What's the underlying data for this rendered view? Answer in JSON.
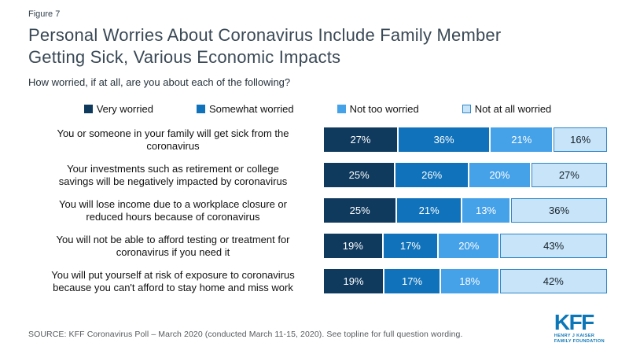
{
  "figure_label": "Figure 7",
  "title_lines": [
    "Personal Worries About Coronavirus Include Family Member",
    "Getting Sick, Various Economic Impacts"
  ],
  "subtitle": "How worried, if at all, are you about each of the following?",
  "colors": {
    "very_worried": "#0f3a5e",
    "somewhat_worried": "#1072ba",
    "not_too_worried": "#45a1e8",
    "not_at_all_worried": "#c8e4f8",
    "not_at_all_border": "#2e86c8",
    "kff_blue": "#0c77b8"
  },
  "chart_data": {
    "type": "bar",
    "orientation": "horizontal",
    "stacked": true,
    "value_unit": "%",
    "legend_position": "top",
    "legend": [
      "Very worried",
      "Somewhat worried",
      "Not too worried",
      "Not at all worried"
    ],
    "categories": [
      "You or someone in your family will get sick from the coronavirus",
      "Your investments such as retirement or college savings will be negatively impacted by coronavirus",
      "You will lose income due to a workplace closure or reduced hours because of coronavirus",
      "You will not be able to afford testing or treatment for coronavirus if you need it",
      "You will put yourself at risk of exposure to coronavirus because you can't afford to stay home and miss work"
    ],
    "series": [
      {
        "name": "Very worried",
        "values": [
          27,
          25,
          25,
          19,
          19
        ]
      },
      {
        "name": "Somewhat worried",
        "values": [
          36,
          26,
          21,
          17,
          17
        ]
      },
      {
        "name": "Not too worried",
        "values": [
          21,
          20,
          13,
          20,
          18
        ]
      },
      {
        "name": "Not at all worried",
        "values": [
          16,
          27,
          36,
          43,
          42
        ]
      }
    ],
    "rows": [
      {
        "category": "You or someone in your family will get sick from the\ncoronavirus",
        "values": [
          27,
          36,
          21,
          16
        ],
        "display": [
          "27%",
          "36%",
          "21%",
          "16%"
        ]
      },
      {
        "category": "Your investments such as retirement or college\nsavings will be negatively impacted by coronavirus",
        "values": [
          25,
          26,
          20,
          27
        ],
        "display": [
          "25%",
          "26%",
          "20%",
          "27%"
        ]
      },
      {
        "category": "You will lose income due to a workplace closure or\nreduced hours because of coronavirus",
        "values": [
          25,
          21,
          13,
          36
        ],
        "display": [
          "25%",
          "21%",
          "13%",
          "36%"
        ]
      },
      {
        "category": "You will not be able to afford testing or treatment for\ncoronavirus if you need it",
        "values": [
          19,
          17,
          20,
          43
        ],
        "display": [
          "19%",
          "17%",
          "20%",
          "43%"
        ]
      },
      {
        "category": "You will put yourself at risk of exposure to coronavirus\nbecause you can't afford to stay home and miss work",
        "values": [
          19,
          17,
          18,
          42
        ],
        "display": [
          "19%",
          "17%",
          "18%",
          "42%"
        ]
      }
    ]
  },
  "source": "SOURCE: KFF Coronavirus Poll – March 2020 (conducted March 11-15, 2020). See topline for full question wording.",
  "logo": {
    "text": "KFF",
    "sub1": "HENRY J KAISER",
    "sub2": "FAMILY FOUNDATION"
  }
}
